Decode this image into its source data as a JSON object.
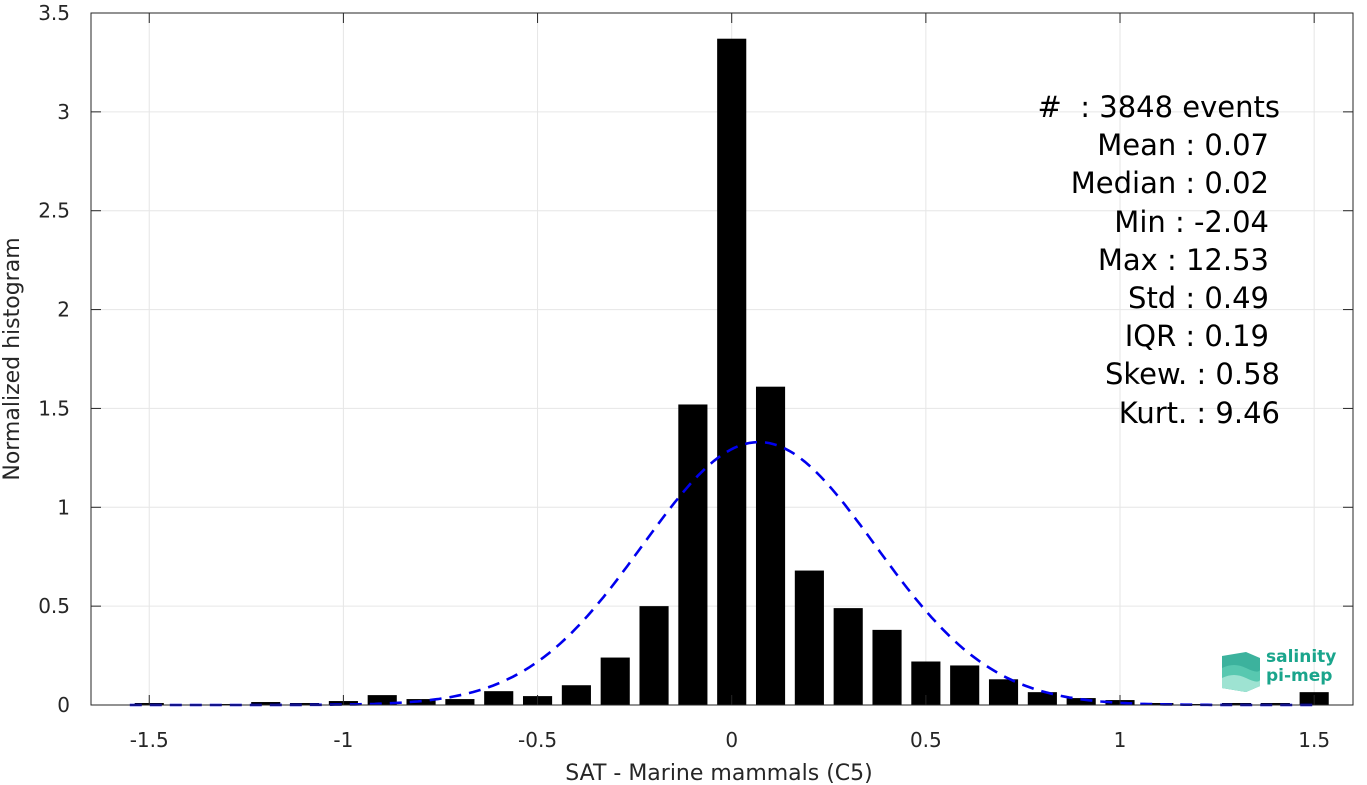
{
  "chart_data": {
    "type": "bar",
    "xlabel": "SAT - Marine mammals (C5)",
    "ylabel": "Normalized histogram",
    "xlim": [
      -1.65,
      1.6
    ],
    "ylim": [
      0,
      3.5
    ],
    "xticks": [
      -1.5,
      -1,
      -0.5,
      0,
      0.5,
      1,
      1.5
    ],
    "xtick_labels": [
      "-1.5",
      "-1",
      "-0.5",
      "0",
      "0.5",
      "1",
      "1.5"
    ],
    "yticks": [
      0,
      0.5,
      1,
      1.5,
      2,
      2.5,
      3,
      3.5
    ],
    "ytick_labels": [
      "0",
      "0.5",
      "1",
      "1.5",
      "2",
      "2.5",
      "3",
      "3.5"
    ],
    "grid": true,
    "bar_color": "#000000",
    "bar_width": 0.075,
    "bins": [
      -1.5,
      -1.4,
      -1.3,
      -1.2,
      -1.1,
      -1.0,
      -0.9,
      -0.8,
      -0.7,
      -0.6,
      -0.5,
      -0.4,
      -0.3,
      -0.2,
      -0.1,
      0.0,
      0.1,
      0.2,
      0.3,
      0.4,
      0.5,
      0.6,
      0.7,
      0.8,
      0.9,
      1.0,
      1.1,
      1.2,
      1.3,
      1.4,
      1.5
    ],
    "values": [
      0.01,
      0.0,
      0.005,
      0.015,
      0.01,
      0.02,
      0.05,
      0.03,
      0.03,
      0.07,
      0.045,
      0.1,
      0.24,
      0.5,
      1.52,
      3.37,
      1.61,
      0.68,
      0.49,
      0.38,
      0.22,
      0.2,
      0.13,
      0.065,
      0.035,
      0.025,
      0.01,
      0.005,
      0.01,
      0.01,
      0.065
    ],
    "fit": {
      "name": "normal fit",
      "style": "dashed",
      "color": "#0000ee",
      "mean": 0.07,
      "std": 0.3,
      "x_range": [
        -1.55,
        1.5
      ]
    }
  },
  "stats": [
    "#  : 3848 events",
    "Mean : 0.07",
    "Median : 0.02",
    "Min : -2.04",
    "Max : 12.53",
    "Std : 0.49",
    "IQR : 0.19",
    "Skew. : 0.58",
    "Kurt. : 9.46"
  ],
  "logo": {
    "line1": "salinity",
    "line2": "pi-mep",
    "color": "#1aa58c"
  }
}
